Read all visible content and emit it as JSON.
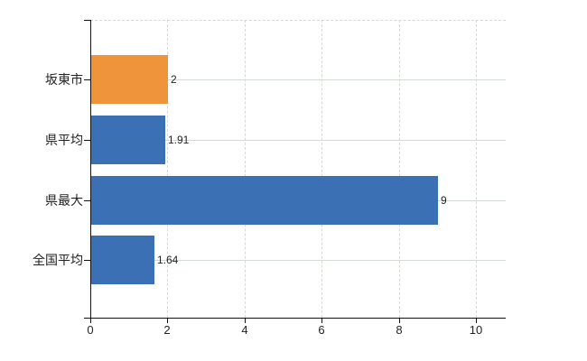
{
  "chart_data": {
    "type": "bar",
    "orientation": "horizontal",
    "title": "",
    "categories": [
      "坂東市",
      "県平均",
      "県最大",
      "全国平均"
    ],
    "values": [
      2,
      1.91,
      9,
      1.64
    ],
    "value_labels": [
      "2",
      "1.91",
      "9",
      "1.64"
    ],
    "bar_colors": [
      "#F0943C",
      "#3C70B4",
      "#3C70B4",
      "#3C70B4"
    ],
    "highlight_color": "#F0943C",
    "default_bar_color": "#3C70B4",
    "x_tick_labels": [
      "0",
      "2",
      "4",
      "6",
      "8",
      "10"
    ],
    "x_tick_values": [
      0,
      2,
      4,
      6,
      8,
      10
    ],
    "xlim": [
      0,
      10.8
    ],
    "grid": true,
    "legend_position": "none",
    "colors": {
      "grid": "#d3dad3",
      "top_border": "#d6d6d6",
      "axis": "#111111",
      "text": "#222222",
      "background": "#ffffff"
    }
  }
}
